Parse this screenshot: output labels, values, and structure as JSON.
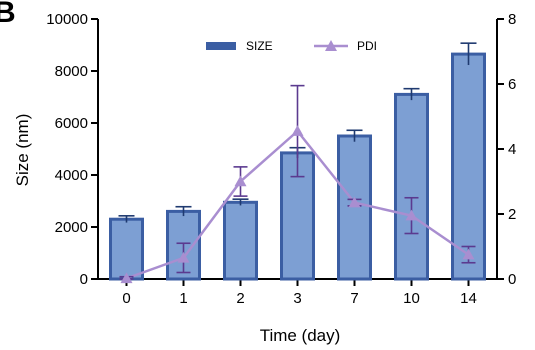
{
  "panel_letter": "B",
  "chart_data": {
    "type": "bar",
    "categories": [
      "0",
      "1",
      "2",
      "3",
      "7",
      "10",
      "14"
    ],
    "xlabel": "Time (day)",
    "ylabel": "Size (nm)",
    "ylim": [
      0,
      10000
    ],
    "y_ticks": [
      "0",
      "2000",
      "4000",
      "6000",
      "8000",
      "10000"
    ],
    "y2lim": [
      0,
      8
    ],
    "y2_ticks": [
      "0",
      "2",
      "4",
      "6",
      "8"
    ],
    "legend_position": "top-center",
    "series": [
      {
        "name": "SIZE",
        "kind": "bar",
        "axis": "left",
        "color": "#3b5ea3",
        "fill": "#7d9fd3",
        "values": [
          2300,
          2600,
          2950,
          4850,
          5500,
          7100,
          8650
        ],
        "errors": [
          130,
          180,
          120,
          200,
          220,
          220,
          420
        ]
      },
      {
        "name": "PDI",
        "kind": "line",
        "axis": "right",
        "color": "#a98ed0",
        "errorColor": "#5b3a8f",
        "values": [
          0.02,
          0.65,
          3.0,
          4.55,
          2.35,
          1.95,
          0.75
        ],
        "errors": [
          0.05,
          0.45,
          0.45,
          1.4,
          0.1,
          0.55,
          0.25
        ]
      }
    ]
  }
}
